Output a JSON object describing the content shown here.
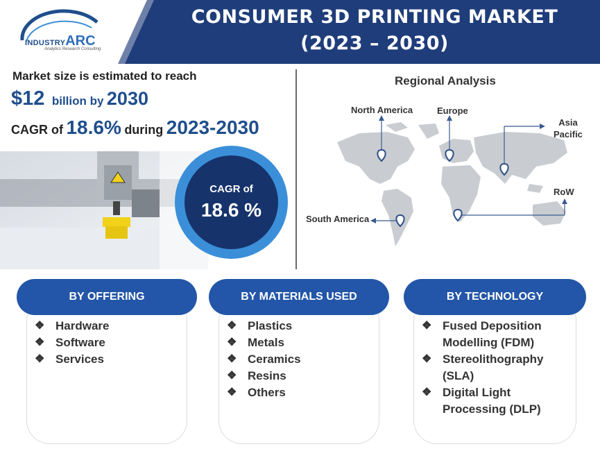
{
  "header": {
    "title_line1": "CONSUMER 3D PRINTING MARKET",
    "title_line2": "(2023 – 2030)",
    "logo_small": "INDUSTRY",
    "logo_big": "ARC",
    "logo_tagline": "Analytics Research Consulting"
  },
  "stats": {
    "estimate_label": "Market size is estimated to reach",
    "amount": "$12",
    "amount_unit": "billion by",
    "amount_year": "2030",
    "cagr_prefix": "CAGR of",
    "cagr_value": "18.6%",
    "cagr_during": "during",
    "cagr_range": "2023-2030"
  },
  "cagr_badge": {
    "label": "CAGR of",
    "value": "18.6 %"
  },
  "regional": {
    "title": "Regional Analysis",
    "regions": {
      "north_america": "North America",
      "europe": "Europe",
      "asia_pacific_1": "Asia",
      "asia_pacific_2": "Pacific",
      "row": "RoW",
      "south_america": "South America"
    }
  },
  "segments": [
    {
      "title": "BY OFFERING",
      "items": [
        "Hardware",
        "Software",
        "Services"
      ]
    },
    {
      "title": "BY MATERIALS USED",
      "items": [
        "Plastics",
        "Metals",
        "Ceramics",
        "Resins",
        "Others"
      ]
    },
    {
      "title": "BY TECHNOLOGY",
      "items": [
        "Fused Deposition",
        "Modelling (FDM)",
        "Stereolithography",
        "(SLA)",
        "Digital Light",
        "Processing (DLP)"
      ]
    }
  ],
  "bullet_glyph": "❖",
  "colors": {
    "navy": "#17336b",
    "brand_blue": "#2356a8",
    "accent_blue": "#3b8fd9",
    "map_gray": "#c9ccd1"
  }
}
